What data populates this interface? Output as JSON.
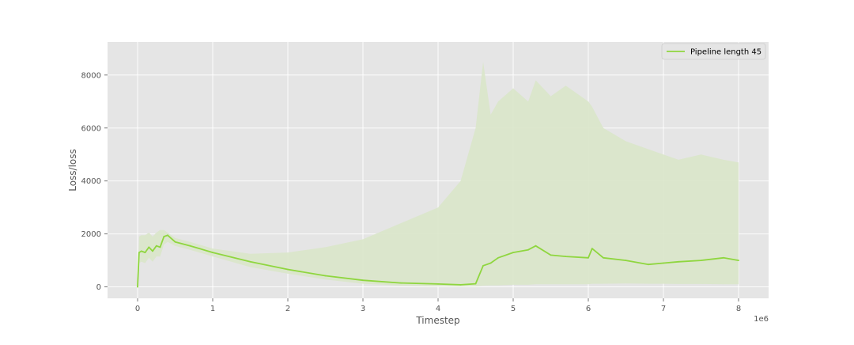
{
  "chart_data": {
    "type": "line",
    "title": "",
    "xlabel": "Timestep",
    "ylabel": "Loss/loss",
    "x_offset_label": "1e6",
    "xlim": [
      -0.4,
      8.4
    ],
    "ylim": [
      -430,
      9250
    ],
    "x_ticks": [
      0,
      1,
      2,
      3,
      4,
      5,
      6,
      7,
      8
    ],
    "x_tick_labels": [
      "0",
      "1",
      "2",
      "3",
      "4",
      "5",
      "6",
      "7",
      "8"
    ],
    "y_ticks": [
      0,
      2000,
      4000,
      6000,
      8000
    ],
    "y_tick_labels": [
      "0",
      "2000",
      "4000",
      "6000",
      "8000"
    ],
    "grid": true,
    "legend_position": "top-right",
    "series": [
      {
        "name": "Pipeline length 45",
        "color": "#8fd63f",
        "shade_color": "#d9e6c9",
        "x": [
          0,
          0.02,
          0.05,
          0.1,
          0.15,
          0.2,
          0.25,
          0.3,
          0.35,
          0.4,
          0.5,
          0.7,
          1.0,
          1.5,
          2.0,
          2.5,
          3.0,
          3.5,
          4.0,
          4.3,
          4.5,
          4.6,
          4.7,
          4.8,
          5.0,
          5.2,
          5.3,
          5.5,
          5.7,
          6.0,
          6.05,
          6.2,
          6.5,
          6.8,
          7.0,
          7.2,
          7.5,
          7.8,
          8.0
        ],
        "values": [
          0,
          1300,
          1350,
          1300,
          1500,
          1350,
          1550,
          1500,
          1900,
          1950,
          1700,
          1550,
          1300,
          950,
          660,
          420,
          250,
          150,
          110,
          80,
          120,
          800,
          900,
          1100,
          1300,
          1400,
          1550,
          1200,
          1150,
          1100,
          1450,
          1100,
          1000,
          850,
          900,
          950,
          1000,
          1100,
          1000
        ],
        "band_upper": [
          0,
          1900,
          1950,
          1950,
          2050,
          1900,
          2050,
          2150,
          2150,
          2050,
          1850,
          1700,
          1450,
          1250,
          1300,
          1500,
          1800,
          2400,
          3000,
          4000,
          6000,
          8500,
          6500,
          7000,
          7500,
          7000,
          7800,
          7200,
          7600,
          7000,
          6800,
          6000,
          5500,
          5200,
          5000,
          4800,
          5000,
          4800,
          4700
        ],
        "band_lower": [
          0,
          900,
          950,
          900,
          1100,
          950,
          1150,
          1150,
          1600,
          1700,
          1550,
          1400,
          1150,
          750,
          500,
          280,
          120,
          50,
          20,
          10,
          20,
          50,
          60,
          60,
          80,
          80,
          100,
          100,
          100,
          100,
          120,
          120,
          130,
          120,
          120,
          110,
          110,
          100,
          100
        ]
      }
    ]
  }
}
